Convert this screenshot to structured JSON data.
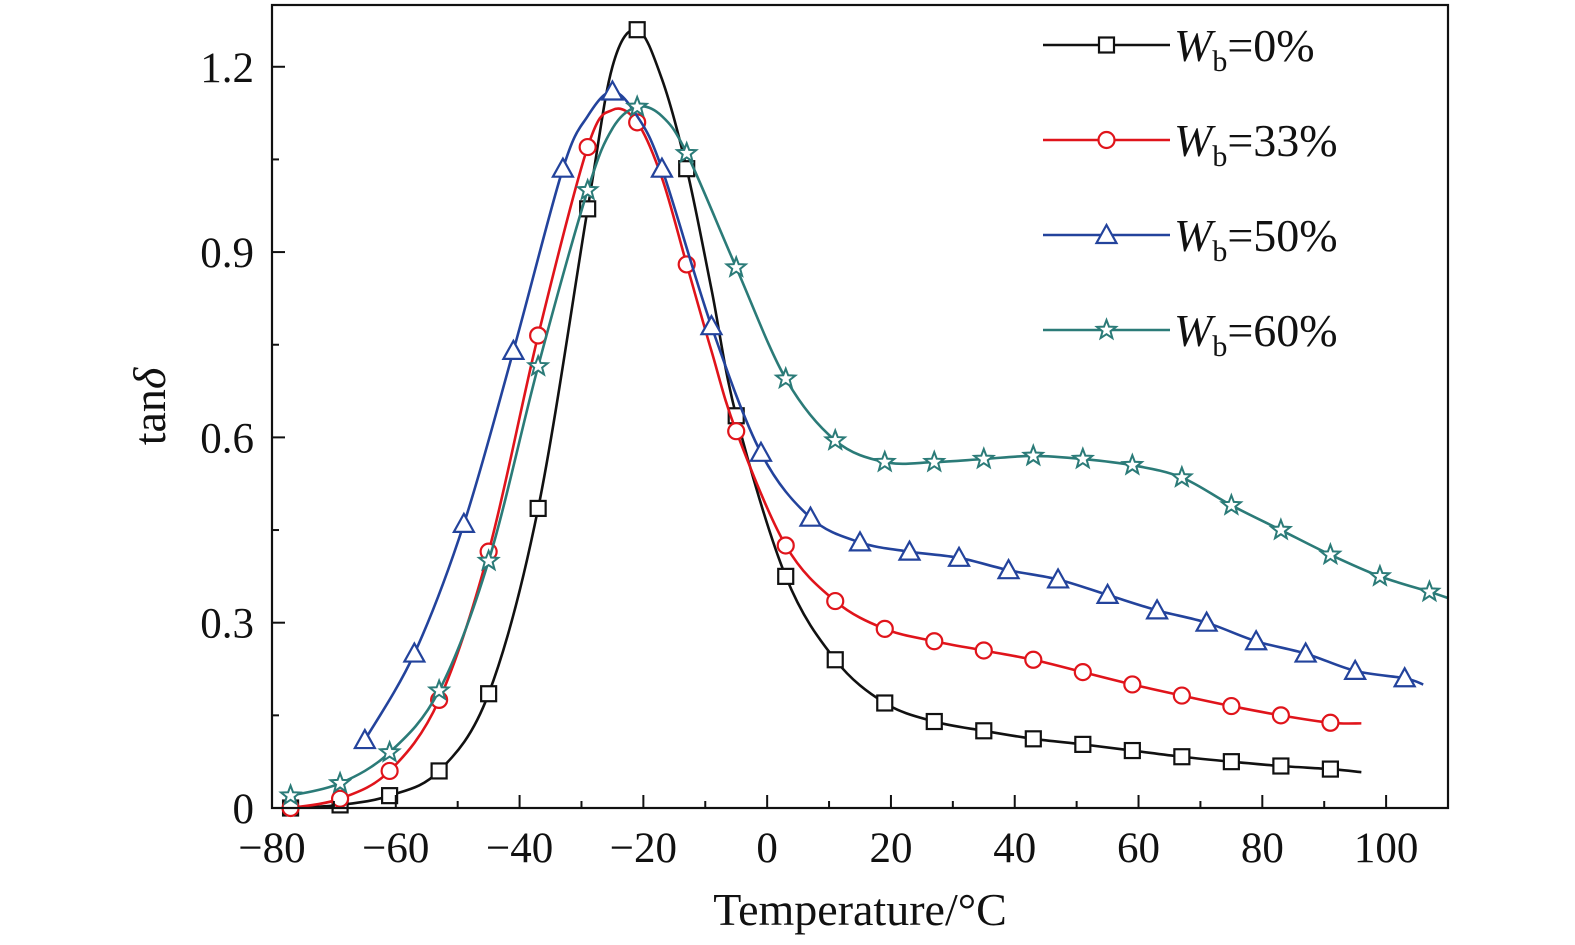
{
  "chart_data": {
    "type": "line",
    "xlabel": "Temperature/°C",
    "ylabel_main": "tan",
    "ylabel_greek": "δ",
    "xlim": [
      -80,
      110
    ],
    "ylim": [
      0,
      1.3
    ],
    "xticks": [
      -80,
      -60,
      -40,
      -20,
      0,
      20,
      40,
      60,
      80,
      100
    ],
    "xtick_labels": [
      "−80",
      "−60",
      "−40",
      "−20",
      "0",
      "20",
      "40",
      "60",
      "80",
      "100"
    ],
    "yticks": [
      0,
      0.3,
      0.6,
      0.9,
      1.2
    ],
    "ytick_labels": [
      "0",
      "0.3",
      "0.6",
      "0.9",
      "1.2"
    ],
    "grid": false,
    "legend_position": "top-right",
    "series": [
      {
        "label_var": "W",
        "label_sub": "b",
        "label_rest": "=0%",
        "color": "#111111",
        "marker": "square",
        "x": [
          -77,
          -69,
          -61,
          -53,
          -45,
          -37,
          -29,
          -21,
          -13,
          -5,
          3,
          11,
          19,
          27,
          35,
          43,
          51,
          59,
          67,
          75,
          83,
          91
        ],
        "y": [
          0.0,
          0.005,
          0.02,
          0.06,
          0.185,
          0.485,
          0.97,
          1.26,
          1.035,
          0.635,
          0.375,
          0.24,
          0.17,
          0.14,
          0.125,
          0.112,
          0.103,
          0.093,
          0.083,
          0.075,
          0.068,
          0.063
        ],
        "line_x": [
          -77,
          -69,
          -61,
          -53,
          -45,
          -37,
          -29,
          -25,
          -21,
          -17,
          -13,
          -9,
          -5,
          3,
          11,
          19,
          27,
          35,
          43,
          51,
          59,
          67,
          75,
          83,
          91,
          96
        ],
        "line_y": [
          0.0,
          0.005,
          0.02,
          0.06,
          0.185,
          0.485,
          0.97,
          1.2,
          1.26,
          1.18,
          1.035,
          0.84,
          0.635,
          0.375,
          0.24,
          0.17,
          0.14,
          0.125,
          0.112,
          0.103,
          0.093,
          0.083,
          0.075,
          0.068,
          0.063,
          0.058
        ]
      },
      {
        "label_var": "W",
        "label_sub": "b",
        "label_rest": "=33%",
        "color": "#e0141b",
        "marker": "circle",
        "x": [
          -77,
          -69,
          -61,
          -53,
          -45,
          -37,
          -29,
          -21,
          -13,
          -5,
          3,
          11,
          19,
          27,
          35,
          43,
          51,
          59,
          67,
          75,
          83,
          91
        ],
        "y": [
          0.0,
          0.015,
          0.06,
          0.175,
          0.415,
          0.765,
          1.07,
          1.11,
          0.88,
          0.61,
          0.425,
          0.335,
          0.29,
          0.27,
          0.255,
          0.24,
          0.22,
          0.2,
          0.182,
          0.165,
          0.15,
          0.138
        ],
        "line_x": [
          -77,
          -69,
          -61,
          -53,
          -45,
          -37,
          -29,
          -25,
          -21,
          -17,
          -13,
          -9,
          -5,
          3,
          11,
          19,
          27,
          35,
          43,
          51,
          59,
          67,
          75,
          83,
          91,
          96
        ],
        "line_y": [
          0.0,
          0.015,
          0.06,
          0.175,
          0.415,
          0.765,
          1.07,
          1.13,
          1.11,
          1.02,
          0.88,
          0.74,
          0.61,
          0.425,
          0.335,
          0.29,
          0.27,
          0.255,
          0.24,
          0.22,
          0.2,
          0.182,
          0.165,
          0.15,
          0.138,
          0.137
        ]
      },
      {
        "label_var": "W",
        "label_sub": "b",
        "label_rest": "=50%",
        "color": "#23439c",
        "marker": "triangle",
        "x": [
          -65,
          -57,
          -49,
          -41,
          -33,
          -25,
          -17,
          -9,
          -1,
          7,
          15,
          23,
          31,
          39,
          47,
          55,
          63,
          71,
          79,
          87,
          95,
          103
        ],
        "y": [
          0.11,
          0.25,
          0.46,
          0.74,
          1.035,
          1.16,
          1.035,
          0.78,
          0.575,
          0.47,
          0.43,
          0.415,
          0.405,
          0.385,
          0.37,
          0.345,
          0.32,
          0.3,
          0.27,
          0.25,
          0.222,
          0.21
        ],
        "line_x": [
          -65,
          -57,
          -49,
          -41,
          -33,
          -29,
          -25,
          -21,
          -17,
          -9,
          -1,
          7,
          15,
          23,
          31,
          39,
          47,
          55,
          63,
          71,
          79,
          87,
          95,
          103,
          106
        ],
        "line_y": [
          0.11,
          0.25,
          0.46,
          0.74,
          1.035,
          1.12,
          1.16,
          1.12,
          1.035,
          0.78,
          0.575,
          0.47,
          0.43,
          0.415,
          0.405,
          0.385,
          0.37,
          0.345,
          0.32,
          0.3,
          0.27,
          0.25,
          0.222,
          0.21,
          0.2
        ]
      },
      {
        "label_var": "W",
        "label_sub": "b",
        "label_rest": "=60%",
        "color": "#2b7b78",
        "marker": "star",
        "x": [
          -77,
          -69,
          -61,
          -53,
          -45,
          -37,
          -29,
          -21,
          -13,
          -5,
          3,
          11,
          19,
          27,
          35,
          43,
          51,
          59,
          67,
          75,
          83,
          91,
          99,
          107
        ],
        "y": [
          0.02,
          0.04,
          0.09,
          0.19,
          0.4,
          0.715,
          1.0,
          1.135,
          1.06,
          0.875,
          0.695,
          0.595,
          0.56,
          0.56,
          0.565,
          0.57,
          0.565,
          0.555,
          0.535,
          0.49,
          0.45,
          0.41,
          0.375,
          0.35
        ],
        "line_x": [
          -77,
          -69,
          -61,
          -53,
          -45,
          -37,
          -29,
          -25,
          -21,
          -17,
          -13,
          -5,
          3,
          11,
          19,
          27,
          35,
          43,
          51,
          59,
          67,
          75,
          83,
          91,
          99,
          107,
          110
        ],
        "line_y": [
          0.02,
          0.04,
          0.09,
          0.19,
          0.4,
          0.715,
          1.0,
          1.1,
          1.135,
          1.12,
          1.06,
          0.875,
          0.695,
          0.595,
          0.56,
          0.56,
          0.565,
          0.57,
          0.565,
          0.555,
          0.535,
          0.49,
          0.45,
          0.41,
          0.375,
          0.35,
          0.34
        ]
      }
    ]
  }
}
